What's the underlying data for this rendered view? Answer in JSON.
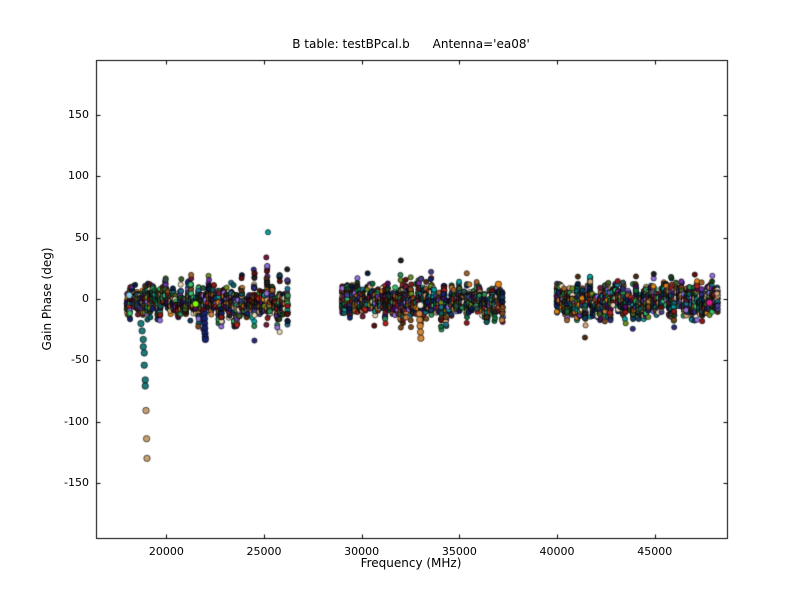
{
  "chart_data": {
    "type": "scatter",
    "title": "B table: testBPcal.b      Antenna='ea08'",
    "xlabel": "Frequency (MHz)",
    "ylabel": "Gain Phase (deg)",
    "xlim": [
      16400,
      48700
    ],
    "ylim": [
      -195,
      195
    ],
    "xticks": [
      20000,
      25000,
      30000,
      35000,
      40000,
      45000
    ],
    "yticks": [
      -150,
      -100,
      -50,
      0,
      50,
      100,
      150
    ],
    "grid": false,
    "background_color": "#ffffff",
    "marker": {
      "size": 5,
      "edge_color": "#000000"
    },
    "bands": [
      {
        "x_min": 18000,
        "x_max": 26200,
        "y_mean": -2,
        "y_spread": 12,
        "n_columns": 64,
        "points_per_column": 26
      },
      {
        "x_min": 29000,
        "x_max": 37200,
        "y_mean": -1,
        "y_spread": 14,
        "n_columns": 64,
        "points_per_column": 26
      },
      {
        "x_min": 40000,
        "x_max": 48200,
        "y_mean": -2,
        "y_spread": 11,
        "n_columns": 64,
        "points_per_column": 26
      }
    ],
    "outlier_trails": [
      {
        "name": "teal-descending-trail",
        "color": "#1f7a7a",
        "points": [
          [
            18700,
            -20
          ],
          [
            18760,
            -26
          ],
          [
            18820,
            -33
          ],
          [
            18820,
            -39
          ],
          [
            18870,
            -44
          ],
          [
            18870,
            -54
          ],
          [
            18920,
            -66
          ],
          [
            18920,
            -71
          ]
        ]
      },
      {
        "name": "tan-descending-trail",
        "color": "#c8a070",
        "points": [
          [
            18960,
            -91
          ],
          [
            18990,
            -114
          ],
          [
            19010,
            -130
          ]
        ]
      },
      {
        "name": "navy-streak",
        "color": "#16226b",
        "points": [
          [
            21950,
            -12
          ],
          [
            21955,
            -16
          ],
          [
            21960,
            -20
          ],
          [
            21970,
            -24
          ],
          [
            21980,
            -28
          ],
          [
            21990,
            -31
          ],
          [
            22000,
            -33
          ]
        ]
      },
      {
        "name": "orange-streak",
        "color": "#d2883c",
        "points": [
          [
            32950,
            -12
          ],
          [
            32970,
            -17
          ],
          [
            32990,
            -22
          ],
          [
            33010,
            -27
          ],
          [
            33030,
            -32
          ]
        ]
      }
    ],
    "notable_points": [
      {
        "x": 37000,
        "y": 12,
        "color": "#e08214"
      },
      {
        "x": 21500,
        "y": -4,
        "color": "#7fff00"
      },
      {
        "x": 33000,
        "y": -5,
        "color": "#f2ead8"
      },
      {
        "x": 47800,
        "y": -3,
        "color": "#e01b84"
      },
      {
        "x": 18100,
        "y": 3,
        "color": "#87ceeb"
      }
    ],
    "palette": [
      "#0b1e3f",
      "#123b5c",
      "#1f6f8b",
      "#0e5e5e",
      "#136a3a",
      "#1e3d1e",
      "#3f5d23",
      "#6b8e23",
      "#4a2c12",
      "#7a4a1f",
      "#a0622d",
      "#c87f3c",
      "#d2a679",
      "#e8d9b5",
      "#5c1010",
      "#8b1a1a",
      "#b22222",
      "#701c3c",
      "#4b0f5e",
      "#6a329f",
      "#2d2d7a",
      "#16226b",
      "#2f4f4f",
      "#202020",
      "#0aa0a0",
      "#39c16c",
      "#2e8b57",
      "#483d8b",
      "#e08214",
      "#9370db"
    ]
  }
}
